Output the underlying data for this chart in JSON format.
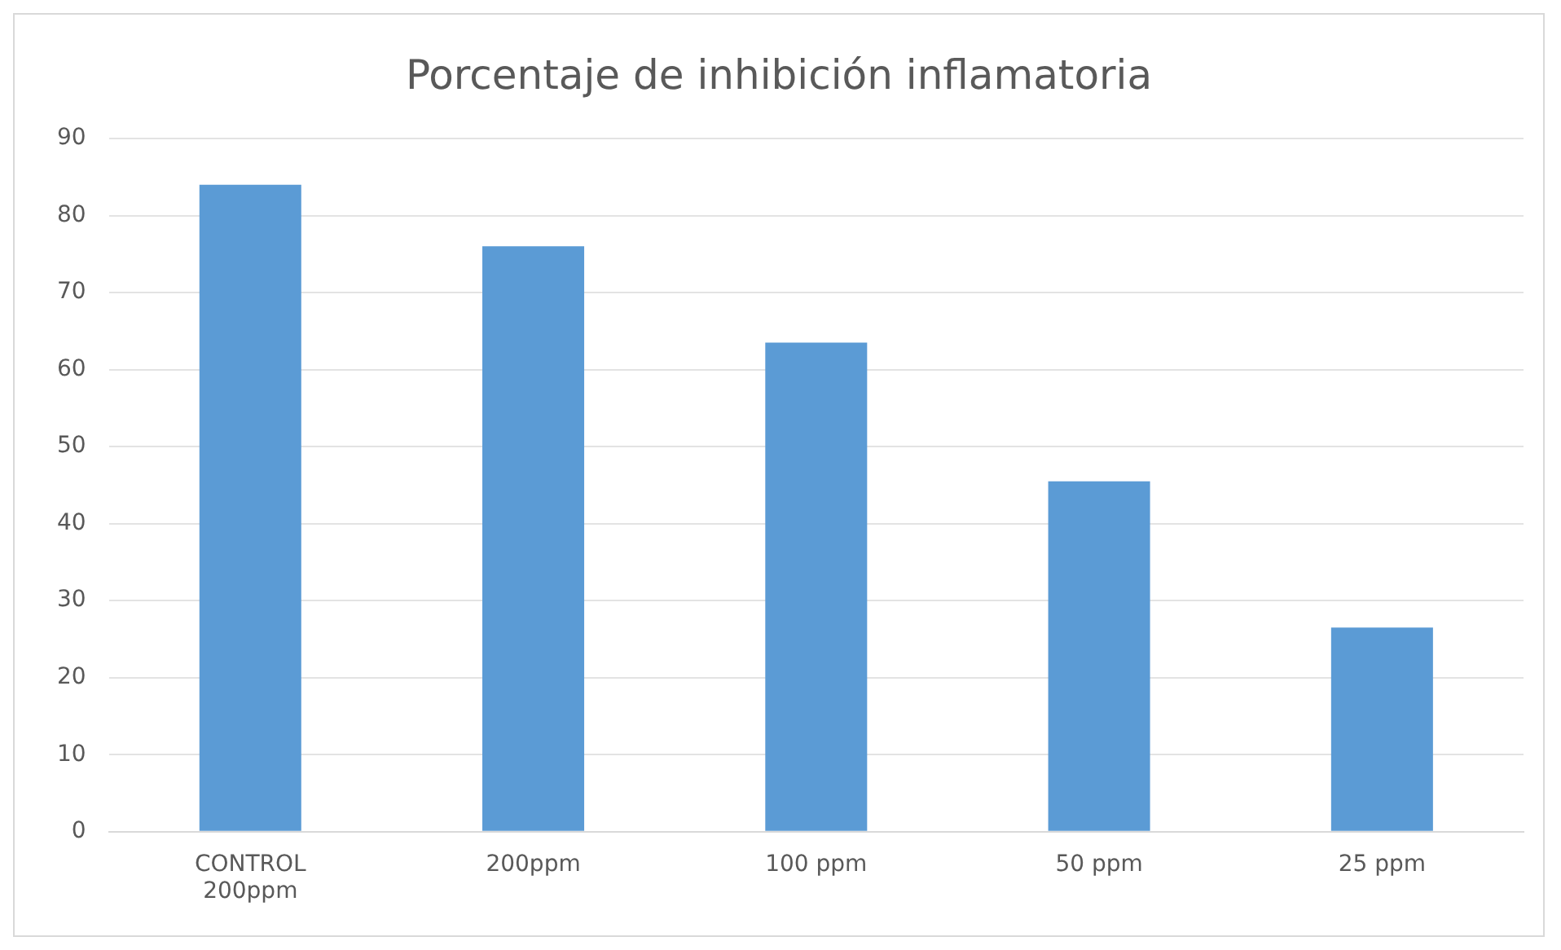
{
  "chart_data": {
    "type": "bar",
    "title": "Porcentaje de inhibición inflamatoria",
    "categories": [
      "CONTROL\n200ppm",
      "200ppm",
      "100 ppm",
      "50 ppm",
      "25 ppm"
    ],
    "values": [
      84,
      76,
      63.5,
      45.5,
      26.5
    ],
    "color": "#5b9bd5",
    "ylim": [
      0,
      90
    ],
    "yticks": [
      0,
      10,
      20,
      30,
      40,
      50,
      60,
      70,
      80,
      90
    ],
    "grid": "y",
    "legend": false
  }
}
